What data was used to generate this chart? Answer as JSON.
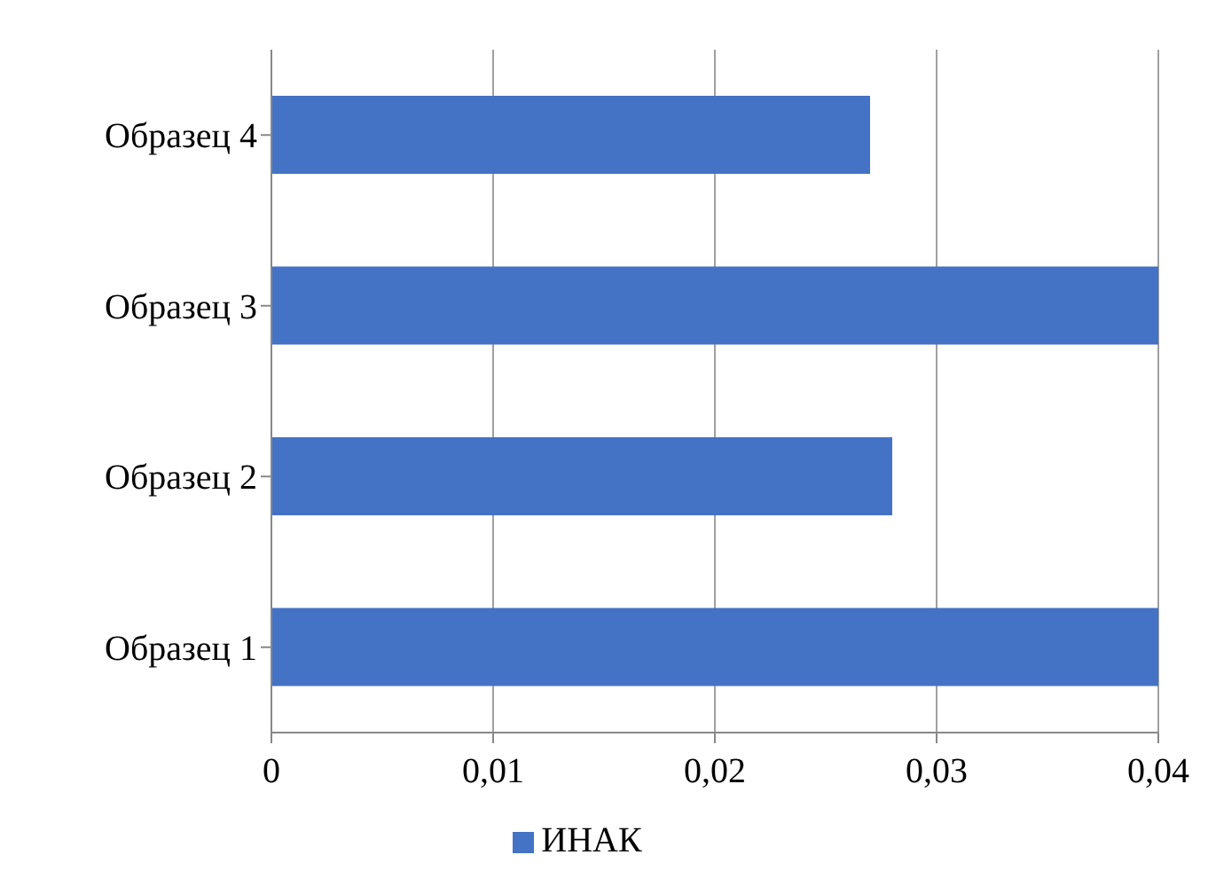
{
  "chart_data": {
    "type": "bar",
    "orientation": "horizontal",
    "categories": [
      "Образец 4",
      "Образец 3",
      "Образец 2",
      "Образец 1"
    ],
    "series": [
      {
        "name": "ИНАК",
        "color": "#4472c4",
        "values": [
          0.027,
          0.04,
          0.028,
          0.04
        ]
      }
    ],
    "xlim": [
      0,
      0.04
    ],
    "xticks": [
      0,
      {
        "value": 0.01,
        "label": "0,01"
      },
      {
        "value": 0.02,
        "label": "0,02"
      },
      {
        "value": 0.03,
        "label": "0,03"
      },
      {
        "value": 0.04,
        "label": "0,04"
      }
    ],
    "grid": "x",
    "legend": "bottom"
  }
}
